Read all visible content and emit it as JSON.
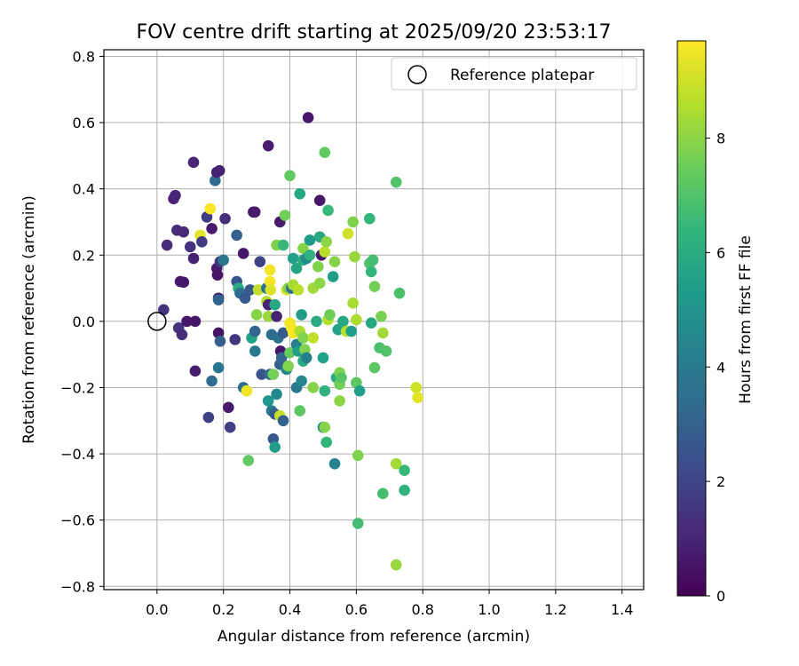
{
  "chart_data": {
    "type": "scatter",
    "title": "FOV centre drift starting at 2025/09/20 23:53:17",
    "xlabel": "Angular distance from reference (arcmin)",
    "ylabel": "Rotation from reference (arcmin)",
    "xlim": [
      -0.16,
      1.465
    ],
    "ylim": [
      -0.81,
      0.82
    ],
    "xticks": [
      0.0,
      0.2,
      0.4,
      0.6,
      0.8,
      1.0,
      1.2,
      1.4
    ],
    "xtick_labels": [
      "0.0",
      "0.2",
      "0.4",
      "0.6",
      "0.8",
      "1.0",
      "1.2",
      "1.4"
    ],
    "yticks": [
      -0.8,
      -0.6,
      -0.4,
      -0.2,
      0.0,
      0.2,
      0.4,
      0.6,
      0.8
    ],
    "ytick_labels": [
      "−0.8",
      "−0.6",
      "−0.4",
      "−0.2",
      "0.0",
      "0.2",
      "0.4",
      "0.6",
      "0.8"
    ],
    "grid": true,
    "legend": {
      "position": "top-right",
      "entries": [
        {
          "label": "Reference platepar",
          "marker": "open-circle"
        }
      ]
    },
    "reference_point": {
      "x": 0.0,
      "y": 0.0
    },
    "colorbar": {
      "label": "Hours from first FF file",
      "range": [
        0,
        9.7
      ],
      "ticks": [
        0,
        2,
        4,
        6,
        8
      ],
      "tick_labels": [
        "0",
        "2",
        "4",
        "6",
        "8"
      ],
      "colormap": "viridis"
    },
    "points": [
      {
        "x": 0.02,
        "y": 0.035,
        "t": 1.4
      },
      {
        "x": 0.03,
        "y": 0.23,
        "t": 1.2
      },
      {
        "x": 0.05,
        "y": 0.37,
        "t": 0.9
      },
      {
        "x": 0.055,
        "y": 0.38,
        "t": 1.0
      },
      {
        "x": 0.06,
        "y": 0.275,
        "t": 1.2
      },
      {
        "x": 0.065,
        "y": -0.02,
        "t": 1.4
      },
      {
        "x": 0.07,
        "y": 0.12,
        "t": 0.7
      },
      {
        "x": 0.075,
        "y": -0.04,
        "t": 1.2
      },
      {
        "x": 0.08,
        "y": 0.27,
        "t": 1.1
      },
      {
        "x": 0.08,
        "y": 0.118,
        "t": 0.6
      },
      {
        "x": 0.09,
        "y": 0.0,
        "t": 0.6
      },
      {
        "x": 0.1,
        "y": 0.225,
        "t": 1.4
      },
      {
        "x": 0.11,
        "y": 0.48,
        "t": 1.0
      },
      {
        "x": 0.11,
        "y": 0.19,
        "t": 0.9
      },
      {
        "x": 0.115,
        "y": -0.15,
        "t": 0.8
      },
      {
        "x": 0.115,
        "y": 0.0,
        "t": 0.6
      },
      {
        "x": 0.13,
        "y": 0.26,
        "t": 9.3
      },
      {
        "x": 0.135,
        "y": 0.24,
        "t": 1.7
      },
      {
        "x": 0.15,
        "y": 0.315,
        "t": 1.7
      },
      {
        "x": 0.155,
        "y": -0.29,
        "t": 1.9
      },
      {
        "x": 0.16,
        "y": 0.34,
        "t": 9.6
      },
      {
        "x": 0.165,
        "y": 0.28,
        "t": 0.7
      },
      {
        "x": 0.165,
        "y": -0.18,
        "t": 3.5
      },
      {
        "x": 0.175,
        "y": 0.425,
        "t": 3.3
      },
      {
        "x": 0.18,
        "y": 0.16,
        "t": 0.8
      },
      {
        "x": 0.18,
        "y": 0.45,
        "t": 0.8
      },
      {
        "x": 0.182,
        "y": 0.14,
        "t": 0.5
      },
      {
        "x": 0.185,
        "y": 0.07,
        "t": 0.7
      },
      {
        "x": 0.188,
        "y": 0.455,
        "t": 0.9
      },
      {
        "x": 0.185,
        "y": 0.065,
        "t": 3.1
      },
      {
        "x": 0.185,
        "y": -0.035,
        "t": 0.5
      },
      {
        "x": 0.185,
        "y": -0.14,
        "t": 3.8
      },
      {
        "x": 0.19,
        "y": -0.06,
        "t": 2.9
      },
      {
        "x": 0.19,
        "y": 0.18,
        "t": 1.6
      },
      {
        "x": 0.2,
        "y": 0.185,
        "t": 3.9
      },
      {
        "x": 0.205,
        "y": 0.31,
        "t": 1.3
      },
      {
        "x": 0.215,
        "y": -0.26,
        "t": 0.7
      },
      {
        "x": 0.22,
        "y": -0.32,
        "t": 1.8
      },
      {
        "x": 0.235,
        "y": -0.055,
        "t": 1.5
      },
      {
        "x": 0.24,
        "y": 0.12,
        "t": 2.5
      },
      {
        "x": 0.24,
        "y": 0.26,
        "t": 3.0
      },
      {
        "x": 0.245,
        "y": 0.1,
        "t": 6.0
      },
      {
        "x": 0.25,
        "y": 0.085,
        "t": 3.5
      },
      {
        "x": 0.26,
        "y": 0.205,
        "t": 0.6
      },
      {
        "x": 0.26,
        "y": -0.2,
        "t": 3.5
      },
      {
        "x": 0.265,
        "y": 0.07,
        "t": 2.7
      },
      {
        "x": 0.27,
        "y": -0.21,
        "t": 9.5
      },
      {
        "x": 0.275,
        "y": -0.42,
        "t": 7.3
      },
      {
        "x": 0.28,
        "y": 0.095,
        "t": 2.7
      },
      {
        "x": 0.285,
        "y": -0.05,
        "t": 5.6
      },
      {
        "x": 0.29,
        "y": 0.33,
        "t": 0.6
      },
      {
        "x": 0.295,
        "y": -0.09,
        "t": 3.9
      },
      {
        "x": 0.295,
        "y": 0.33,
        "t": 0.7
      },
      {
        "x": 0.295,
        "y": -0.03,
        "t": 3.2
      },
      {
        "x": 0.3,
        "y": 0.02,
        "t": 7.9
      },
      {
        "x": 0.305,
        "y": 0.095,
        "t": 8.8
      },
      {
        "x": 0.31,
        "y": 0.18,
        "t": 2.0
      },
      {
        "x": 0.315,
        "y": -0.16,
        "t": 2.5
      },
      {
        "x": 0.33,
        "y": 0.1,
        "t": 3.7
      },
      {
        "x": 0.33,
        "y": 0.06,
        "t": 8.6
      },
      {
        "x": 0.335,
        "y": 0.05,
        "t": 0.9
      },
      {
        "x": 0.335,
        "y": 0.015,
        "t": 8.2
      },
      {
        "x": 0.335,
        "y": 0.53,
        "t": 0.8
      },
      {
        "x": 0.335,
        "y": -0.24,
        "t": 5.1
      },
      {
        "x": 0.34,
        "y": 0.155,
        "t": 9.5
      },
      {
        "x": 0.34,
        "y": -0.16,
        "t": 3.4
      },
      {
        "x": 0.34,
        "y": 0.12,
        "t": 9.6
      },
      {
        "x": 0.342,
        "y": 0.095,
        "t": 9.2
      },
      {
        "x": 0.345,
        "y": -0.27,
        "t": 4.0
      },
      {
        "x": 0.35,
        "y": -0.355,
        "t": 2.7
      },
      {
        "x": 0.345,
        "y": -0.04,
        "t": 3.4
      },
      {
        "x": 0.35,
        "y": -0.16,
        "t": 7.6
      },
      {
        "x": 0.355,
        "y": 0.05,
        "t": 5.8
      },
      {
        "x": 0.355,
        "y": -0.28,
        "t": 2.8
      },
      {
        "x": 0.355,
        "y": -0.38,
        "t": 5.3
      },
      {
        "x": 0.36,
        "y": -0.22,
        "t": 4.5
      },
      {
        "x": 0.36,
        "y": 0.015,
        "t": 0.9
      },
      {
        "x": 0.36,
        "y": 0.23,
        "t": 7.8
      },
      {
        "x": 0.365,
        "y": -0.05,
        "t": 3.6
      },
      {
        "x": 0.37,
        "y": 0.3,
        "t": 0.7
      },
      {
        "x": 0.37,
        "y": -0.13,
        "t": 3.0
      },
      {
        "x": 0.37,
        "y": -0.285,
        "t": 8.9
      },
      {
        "x": 0.372,
        "y": -0.09,
        "t": 0.6
      },
      {
        "x": 0.375,
        "y": -0.11,
        "t": 3.2
      },
      {
        "x": 0.38,
        "y": 0.23,
        "t": 6.5
      },
      {
        "x": 0.38,
        "y": -0.035,
        "t": 2.8
      },
      {
        "x": 0.38,
        "y": -0.3,
        "t": 3.0
      },
      {
        "x": 0.385,
        "y": 0.32,
        "t": 7.6
      },
      {
        "x": 0.39,
        "y": -0.145,
        "t": 4.5
      },
      {
        "x": 0.39,
        "y": 0.095,
        "t": 9.2
      },
      {
        "x": 0.395,
        "y": -0.135,
        "t": 7.8
      },
      {
        "x": 0.395,
        "y": 0.1,
        "t": 7.9
      },
      {
        "x": 0.4,
        "y": -0.095,
        "t": 7.4
      },
      {
        "x": 0.4,
        "y": 0.44,
        "t": 7.3
      },
      {
        "x": 0.4,
        "y": -0.005,
        "t": 9.5
      },
      {
        "x": 0.405,
        "y": -0.02,
        "t": 9.6
      },
      {
        "x": 0.405,
        "y": 0.1,
        "t": 3.5
      },
      {
        "x": 0.41,
        "y": -0.035,
        "t": 9.7
      },
      {
        "x": 0.41,
        "y": 0.19,
        "t": 5.5
      },
      {
        "x": 0.41,
        "y": 0.11,
        "t": 8.4
      },
      {
        "x": 0.42,
        "y": -0.07,
        "t": 4.2
      },
      {
        "x": 0.42,
        "y": -0.2,
        "t": 4.0
      },
      {
        "x": 0.42,
        "y": 0.16,
        "t": 5.7
      },
      {
        "x": 0.425,
        "y": 0.095,
        "t": 8.7
      },
      {
        "x": 0.425,
        "y": -0.09,
        "t": 5.4
      },
      {
        "x": 0.43,
        "y": 0.385,
        "t": 5.8
      },
      {
        "x": 0.43,
        "y": -0.27,
        "t": 7.2
      },
      {
        "x": 0.43,
        "y": -0.03,
        "t": 8.5
      },
      {
        "x": 0.435,
        "y": 0.02,
        "t": 5.3
      },
      {
        "x": 0.435,
        "y": -0.18,
        "t": 4.5
      },
      {
        "x": 0.44,
        "y": 0.185,
        "t": 6.0
      },
      {
        "x": 0.44,
        "y": -0.05,
        "t": 7.8
      },
      {
        "x": 0.44,
        "y": 0.22,
        "t": 7.9
      },
      {
        "x": 0.44,
        "y": -0.12,
        "t": 6.0
      },
      {
        "x": 0.445,
        "y": -0.085,
        "t": 7.8
      },
      {
        "x": 0.45,
        "y": 0.19,
        "t": 4.6
      },
      {
        "x": 0.45,
        "y": -0.11,
        "t": 4.2
      },
      {
        "x": 0.455,
        "y": 0.615,
        "t": 0.6
      },
      {
        "x": 0.46,
        "y": 0.245,
        "t": 5.2
      },
      {
        "x": 0.46,
        "y": 0.2,
        "t": 6.2
      },
      {
        "x": 0.47,
        "y": 0.1,
        "t": 8.3
      },
      {
        "x": 0.47,
        "y": -0.2,
        "t": 7.9
      },
      {
        "x": 0.47,
        "y": -0.05,
        "t": 8.8
      },
      {
        "x": 0.48,
        "y": 0.0,
        "t": 5.9
      },
      {
        "x": 0.485,
        "y": 0.165,
        "t": 7.8
      },
      {
        "x": 0.49,
        "y": 0.255,
        "t": 5.8
      },
      {
        "x": 0.49,
        "y": 0.365,
        "t": 0.6
      },
      {
        "x": 0.49,
        "y": 0.115,
        "t": 8.0
      },
      {
        "x": 0.495,
        "y": 0.2,
        "t": 0.6
      },
      {
        "x": 0.5,
        "y": -0.11,
        "t": 5.5
      },
      {
        "x": 0.5,
        "y": -0.32,
        "t": 4.8
      },
      {
        "x": 0.505,
        "y": -0.32,
        "t": 7.9
      },
      {
        "x": 0.505,
        "y": 0.21,
        "t": 8.7
      },
      {
        "x": 0.505,
        "y": 0.51,
        "t": 7.3
      },
      {
        "x": 0.505,
        "y": -0.21,
        "t": 6.2
      },
      {
        "x": 0.51,
        "y": 0.24,
        "t": 8.0
      },
      {
        "x": 0.51,
        "y": -0.365,
        "t": 6.3
      },
      {
        "x": 0.515,
        "y": 0.335,
        "t": 6.5
      },
      {
        "x": 0.515,
        "y": 0.005,
        "t": 8.6
      },
      {
        "x": 0.52,
        "y": 0.02,
        "t": 7.5
      },
      {
        "x": 0.53,
        "y": 0.135,
        "t": 5.4
      },
      {
        "x": 0.535,
        "y": 0.18,
        "t": 7.9
      },
      {
        "x": 0.535,
        "y": -0.43,
        "t": 4.3
      },
      {
        "x": 0.54,
        "y": -0.17,
        "t": 6.1
      },
      {
        "x": 0.545,
        "y": -0.025,
        "t": 5.5
      },
      {
        "x": 0.55,
        "y": -0.19,
        "t": 7.6
      },
      {
        "x": 0.55,
        "y": -0.155,
        "t": 7.8
      },
      {
        "x": 0.55,
        "y": -0.24,
        "t": 8.0
      },
      {
        "x": 0.555,
        "y": -0.17,
        "t": 7.1
      },
      {
        "x": 0.56,
        "y": 0.0,
        "t": 5.8
      },
      {
        "x": 0.57,
        "y": -0.03,
        "t": 8.6
      },
      {
        "x": 0.575,
        "y": 0.265,
        "t": 9.0
      },
      {
        "x": 0.585,
        "y": -0.03,
        "t": 5.4
      },
      {
        "x": 0.59,
        "y": 0.3,
        "t": 7.8
      },
      {
        "x": 0.59,
        "y": 0.055,
        "t": 8.4
      },
      {
        "x": 0.595,
        "y": 0.195,
        "t": 8.2
      },
      {
        "x": 0.6,
        "y": -0.185,
        "t": 7.2
      },
      {
        "x": 0.6,
        "y": 0.005,
        "t": 8.5
      },
      {
        "x": 0.605,
        "y": -0.405,
        "t": 7.8
      },
      {
        "x": 0.605,
        "y": -0.61,
        "t": 6.7
      },
      {
        "x": 0.61,
        "y": -0.21,
        "t": 5.5
      },
      {
        "x": 0.64,
        "y": 0.31,
        "t": 6.4
      },
      {
        "x": 0.64,
        "y": 0.175,
        "t": 7.0
      },
      {
        "x": 0.645,
        "y": 0.15,
        "t": 6.4
      },
      {
        "x": 0.645,
        "y": -0.005,
        "t": 5.8
      },
      {
        "x": 0.65,
        "y": 0.185,
        "t": 6.8
      },
      {
        "x": 0.655,
        "y": 0.105,
        "t": 7.6
      },
      {
        "x": 0.655,
        "y": -0.14,
        "t": 7.2
      },
      {
        "x": 0.67,
        "y": -0.08,
        "t": 6.9
      },
      {
        "x": 0.675,
        "y": 0.015,
        "t": 7.7
      },
      {
        "x": 0.68,
        "y": -0.52,
        "t": 6.8
      },
      {
        "x": 0.68,
        "y": -0.035,
        "t": 8.3
      },
      {
        "x": 0.69,
        "y": -0.09,
        "t": 7.0
      },
      {
        "x": 0.72,
        "y": 0.42,
        "t": 7.0
      },
      {
        "x": 0.72,
        "y": -0.43,
        "t": 8.3
      },
      {
        "x": 0.72,
        "y": -0.735,
        "t": 8.2
      },
      {
        "x": 0.73,
        "y": 0.085,
        "t": 6.9
      },
      {
        "x": 0.745,
        "y": -0.45,
        "t": 6.5
      },
      {
        "x": 0.745,
        "y": -0.51,
        "t": 6.3
      },
      {
        "x": 0.78,
        "y": -0.2,
        "t": 9.0
      },
      {
        "x": 0.785,
        "y": -0.23,
        "t": 9.3
      }
    ]
  },
  "colors": {
    "grid": "#b0b0b0",
    "reference_marker": "#000000",
    "viridis": [
      "#440154",
      "#482878",
      "#3e4989",
      "#31688e",
      "#26828e",
      "#1f9e89",
      "#35b779",
      "#6ece58",
      "#b5de2b",
      "#fde725"
    ]
  }
}
